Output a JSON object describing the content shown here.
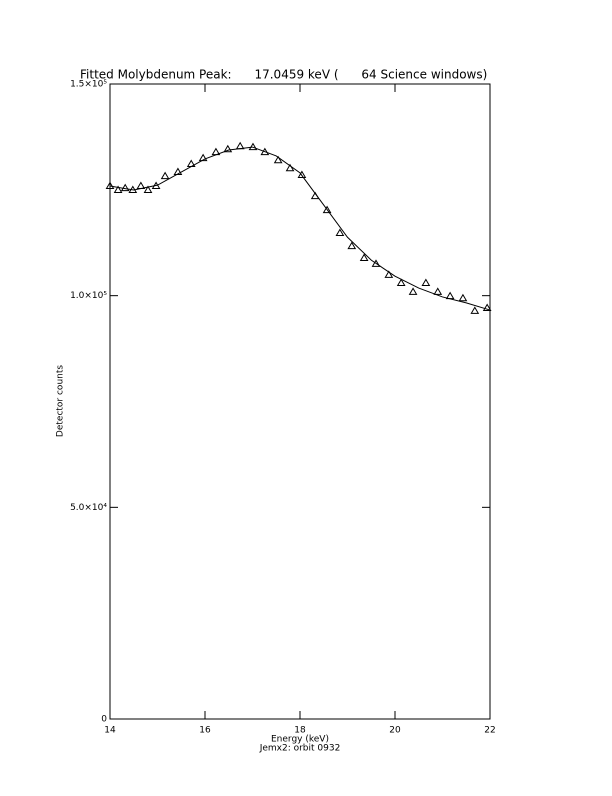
{
  "chart_data": {
    "type": "scatter",
    "title": "Fitted Molybdenum Peak:      17.0459 keV (      64 Science windows)",
    "x_label": "Energy (keV)",
    "subtitle": "Jemx2: orbit 0932",
    "y_label": "Detector counts",
    "xlim": [
      14,
      22
    ],
    "xticks": [
      14,
      16,
      18,
      20,
      22
    ],
    "ylim": [
      0,
      150000
    ],
    "yticks": [
      0,
      {
        "value": 50000,
        "label": "5.0×10⁴"
      },
      {
        "value": 100000,
        "label": "1.0×10⁵"
      },
      {
        "value": 150000,
        "label": "1.5×10⁵"
      }
    ],
    "color": "#000000",
    "series": [
      {
        "marker": "triangle",
        "x": [
          14.0,
          14.17,
          14.32,
          14.48,
          14.65,
          14.8,
          14.97,
          15.16,
          15.43,
          15.71,
          15.96,
          16.23,
          16.48,
          16.74,
          17.01,
          17.26,
          17.54,
          17.79,
          18.04,
          18.32,
          18.57,
          18.84,
          19.09,
          19.35,
          19.6,
          19.87,
          20.13,
          20.38,
          20.65,
          20.9,
          21.16,
          21.43,
          21.68,
          21.94
        ],
        "values": [
          125900,
          124950,
          125400,
          124950,
          125900,
          124950,
          125900,
          128250,
          129200,
          131100,
          132500,
          133900,
          134600,
          135300,
          135100,
          133900,
          132000,
          130100,
          128500,
          123500,
          120200,
          114800,
          111700,
          108900,
          107500,
          104900,
          103000,
          100900,
          103000,
          100900,
          99900,
          99400,
          96400,
          97100
        ]
      },
      {
        "marker": "line",
        "x": [
          14,
          14.5,
          15,
          15.5,
          16,
          16.5,
          17,
          17.5,
          18,
          18.5,
          19,
          19.5,
          20,
          20.5,
          21,
          21.5,
          22
        ],
        "values": [
          125900,
          124950,
          126100,
          129200,
          132300,
          134400,
          135100,
          133000,
          129000,
          121400,
          113800,
          108400,
          104600,
          101800,
          99700,
          98300,
          96600
        ]
      }
    ]
  }
}
